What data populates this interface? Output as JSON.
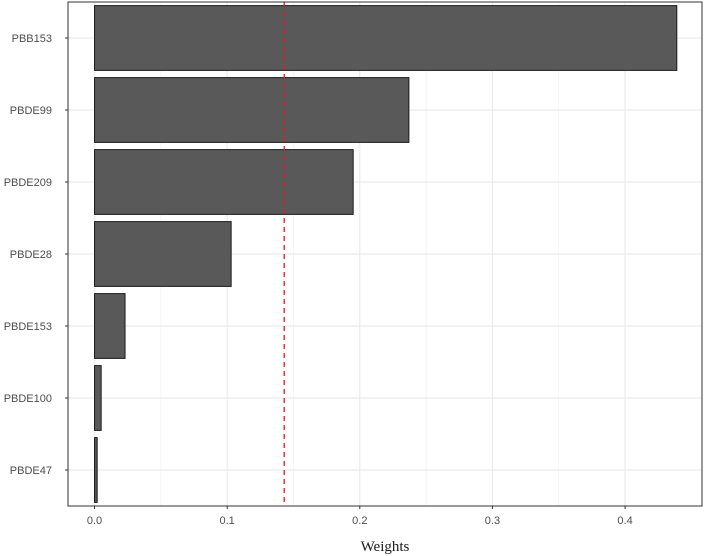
{
  "chart_data": {
    "type": "bar",
    "orientation": "horizontal",
    "categories": [
      "PBB153",
      "PBDE99",
      "PBDE209",
      "PBDE28",
      "PBDE153",
      "PBDE100",
      "PBDE47"
    ],
    "values": [
      0.439,
      0.237,
      0.195,
      0.103,
      0.023,
      0.005,
      0.002
    ],
    "xlabel": "Weights",
    "ylabel": "",
    "xlim": [
      -0.02,
      0.458
    ],
    "xticks": [
      0.0,
      0.1,
      0.2,
      0.3,
      0.4
    ],
    "xtick_labels": [
      "0.0",
      "0.1",
      "0.2",
      "0.3",
      "0.4"
    ],
    "reference_line": {
      "value": 0.143,
      "style": "dashed",
      "color": "#e41a1c"
    },
    "grid": true,
    "panel_border": true,
    "legend": "none",
    "colors": {
      "bar_fill": "#595959",
      "bar_stroke": "#1a1a1a",
      "grid": "#ebebeb",
      "border": "#333333"
    }
  }
}
